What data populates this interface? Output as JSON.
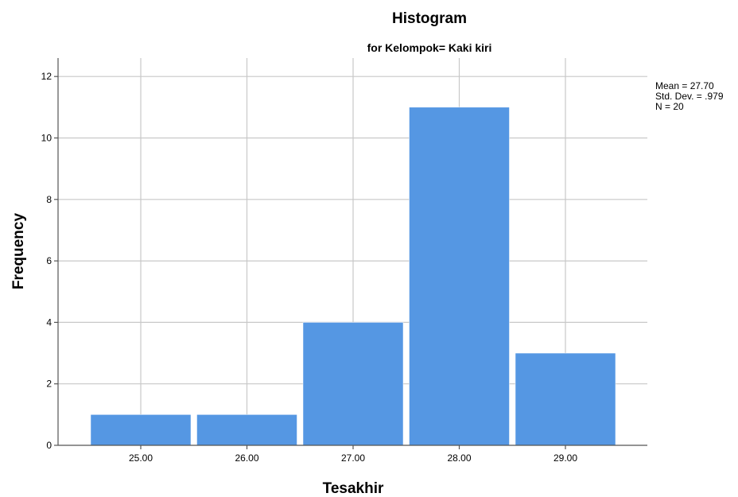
{
  "chart_data": {
    "type": "bar",
    "title": "Histogram",
    "subtitle": "for Kelompok= Kaki kiri",
    "xlabel": "Tesakhir",
    "ylabel": "Frequency",
    "categories": [
      "25.00",
      "26.00",
      "27.00",
      "28.00",
      "29.00"
    ],
    "values": [
      1,
      1,
      4,
      11,
      3
    ],
    "ylim": [
      0,
      12.6
    ],
    "yticks": [
      "0",
      "2",
      "4",
      "6",
      "8",
      "10",
      "12"
    ],
    "grid": true,
    "bar_color": "#5597e3",
    "stats": {
      "mean": "Mean = 27.70",
      "std_dev": "Std. Dev. = .979",
      "n": "N = 20"
    }
  }
}
